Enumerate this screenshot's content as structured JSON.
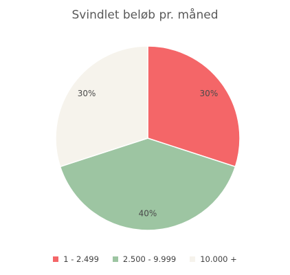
{
  "chart_data": {
    "type": "pie",
    "title": "Svindlet beløb pr. måned",
    "slices": [
      {
        "label": "1 - 2.499",
        "value": 30,
        "display": "30%",
        "color": "#f46668"
      },
      {
        "label": "2.500 - 9.999",
        "value": 40,
        "display": "40%",
        "color": "#9dc5a2"
      },
      {
        "label": "10.000 +",
        "value": 30,
        "display": "30%",
        "color": "#f6f3ec"
      }
    ],
    "legend_position": "bottom"
  }
}
